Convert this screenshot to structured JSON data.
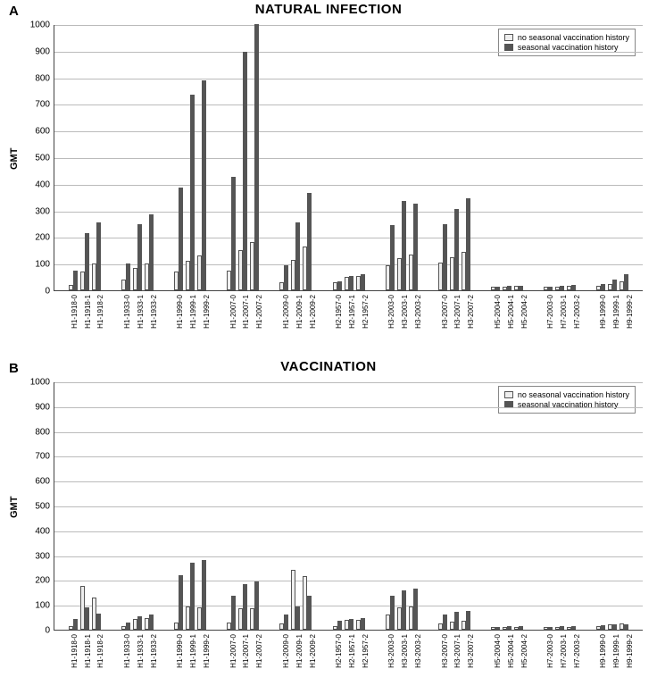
{
  "chartA": {
    "panel_label": "A",
    "title": "NATURAL INFECTION",
    "ylabel": "GMT",
    "ylim": [
      0,
      1000
    ],
    "ytick_step": 100,
    "legend": {
      "series_a": "no seasonal vaccination history",
      "series_b": "seasonal vaccination history"
    },
    "colors": {
      "series_a_fill": "#eeeeee",
      "series_a_border": "#555555",
      "series_b_fill": "#555555",
      "grid": "#bbbbbb",
      "axis": "#444444",
      "background": "#ffffff"
    },
    "groups": [
      {
        "label": "H1-1918",
        "suffixes": [
          "0",
          "1",
          "2"
        ],
        "a": [
          20,
          70,
          100
        ],
        "b": [
          75,
          215,
          255
        ]
      },
      {
        "label": "H1-1933",
        "suffixes": [
          "0",
          "1",
          "2"
        ],
        "a": [
          40,
          85,
          100
        ],
        "b": [
          100,
          250,
          285
        ]
      },
      {
        "label": "H1-1999",
        "suffixes": [
          "0",
          "1",
          "2"
        ],
        "a": [
          70,
          110,
          130
        ],
        "b": [
          385,
          735,
          790
        ]
      },
      {
        "label": "H1-2007",
        "suffixes": [
          "0",
          "1",
          "2"
        ],
        "a": [
          75,
          150,
          180
        ],
        "b": [
          425,
          895,
          1000
        ]
      },
      {
        "label": "H1-2009",
        "suffixes": [
          "0",
          "1",
          "2"
        ],
        "a": [
          30,
          115,
          165
        ],
        "b": [
          95,
          255,
          365
        ]
      },
      {
        "label": "H2-1957",
        "suffixes": [
          "0",
          "1",
          "2"
        ],
        "a": [
          30,
          50,
          55
        ],
        "b": [
          35,
          55,
          60
        ]
      },
      {
        "label": "H3-2003",
        "suffixes": [
          "0",
          "1",
          "2"
        ],
        "a": [
          95,
          120,
          135
        ],
        "b": [
          245,
          335,
          325
        ]
      },
      {
        "label": "H3-2007",
        "suffixes": [
          "0",
          "1",
          "2"
        ],
        "a": [
          105,
          125,
          145
        ],
        "b": [
          250,
          305,
          345
        ]
      },
      {
        "label": "H5-2004",
        "suffixes": [
          "0",
          "1",
          "2"
        ],
        "a": [
          15,
          15,
          18
        ],
        "b": [
          15,
          17,
          18
        ]
      },
      {
        "label": "H7-2003",
        "suffixes": [
          "0",
          "1",
          "2"
        ],
        "a": [
          12,
          15,
          18
        ],
        "b": [
          15,
          17,
          20
        ]
      },
      {
        "label": "H9-1999",
        "suffixes": [
          "0",
          "1",
          "2"
        ],
        "a": [
          18,
          25,
          35
        ],
        "b": [
          25,
          40,
          60
        ]
      }
    ]
  },
  "chartB": {
    "panel_label": "B",
    "title": "VACCINATION",
    "ylabel": "GMT",
    "ylim": [
      0,
      1000
    ],
    "ytick_step": 100,
    "legend": {
      "series_a": "no seasonal vaccination history",
      "series_b": "seasonal vaccination history"
    },
    "colors": {
      "series_a_fill": "#eeeeee",
      "series_a_border": "#555555",
      "series_b_fill": "#555555",
      "grid": "#bbbbbb",
      "axis": "#444444",
      "background": "#ffffff"
    },
    "groups": [
      {
        "label": "H1-1918",
        "suffixes": [
          "0",
          "1",
          "2"
        ],
        "a": [
          15,
          175,
          130
        ],
        "b": [
          45,
          90,
          65
        ]
      },
      {
        "label": "H1-1933",
        "suffixes": [
          "0",
          "1",
          "2"
        ],
        "a": [
          15,
          45,
          48
        ],
        "b": [
          30,
          55,
          60
        ]
      },
      {
        "label": "H1-1999",
        "suffixes": [
          "0",
          "1",
          "2"
        ],
        "a": [
          30,
          95,
          90
        ],
        "b": [
          220,
          270,
          280
        ]
      },
      {
        "label": "H1-2007",
        "suffixes": [
          "0",
          "1",
          "2"
        ],
        "a": [
          30,
          85,
          85
        ],
        "b": [
          135,
          185,
          195
        ]
      },
      {
        "label": "H1-2009",
        "suffixes": [
          "0",
          "1",
          "2"
        ],
        "a": [
          25,
          240,
          215
        ],
        "b": [
          60,
          95,
          135
        ]
      },
      {
        "label": "H2-1957",
        "suffixes": [
          "0",
          "1",
          "2"
        ],
        "a": [
          15,
          38,
          40
        ],
        "b": [
          35,
          45,
          48
        ]
      },
      {
        "label": "H3-2003",
        "suffixes": [
          "0",
          "1",
          "2"
        ],
        "a": [
          60,
          90,
          95
        ],
        "b": [
          135,
          160,
          165
        ]
      },
      {
        "label": "H3-2007",
        "suffixes": [
          "0",
          "1",
          "2"
        ],
        "a": [
          25,
          33,
          35
        ],
        "b": [
          60,
          72,
          75
        ]
      },
      {
        "label": "H5-2004",
        "suffixes": [
          "0",
          "1",
          "2"
        ],
        "a": [
          10,
          12,
          12
        ],
        "b": [
          12,
          15,
          15
        ]
      },
      {
        "label": "H7-2003",
        "suffixes": [
          "0",
          "1",
          "2"
        ],
        "a": [
          10,
          12,
          12
        ],
        "b": [
          12,
          15,
          15
        ]
      },
      {
        "label": "H9-1999",
        "suffixes": [
          "0",
          "1",
          "2"
        ],
        "a": [
          15,
          22,
          25
        ],
        "b": [
          18,
          22,
          20
        ]
      }
    ]
  }
}
